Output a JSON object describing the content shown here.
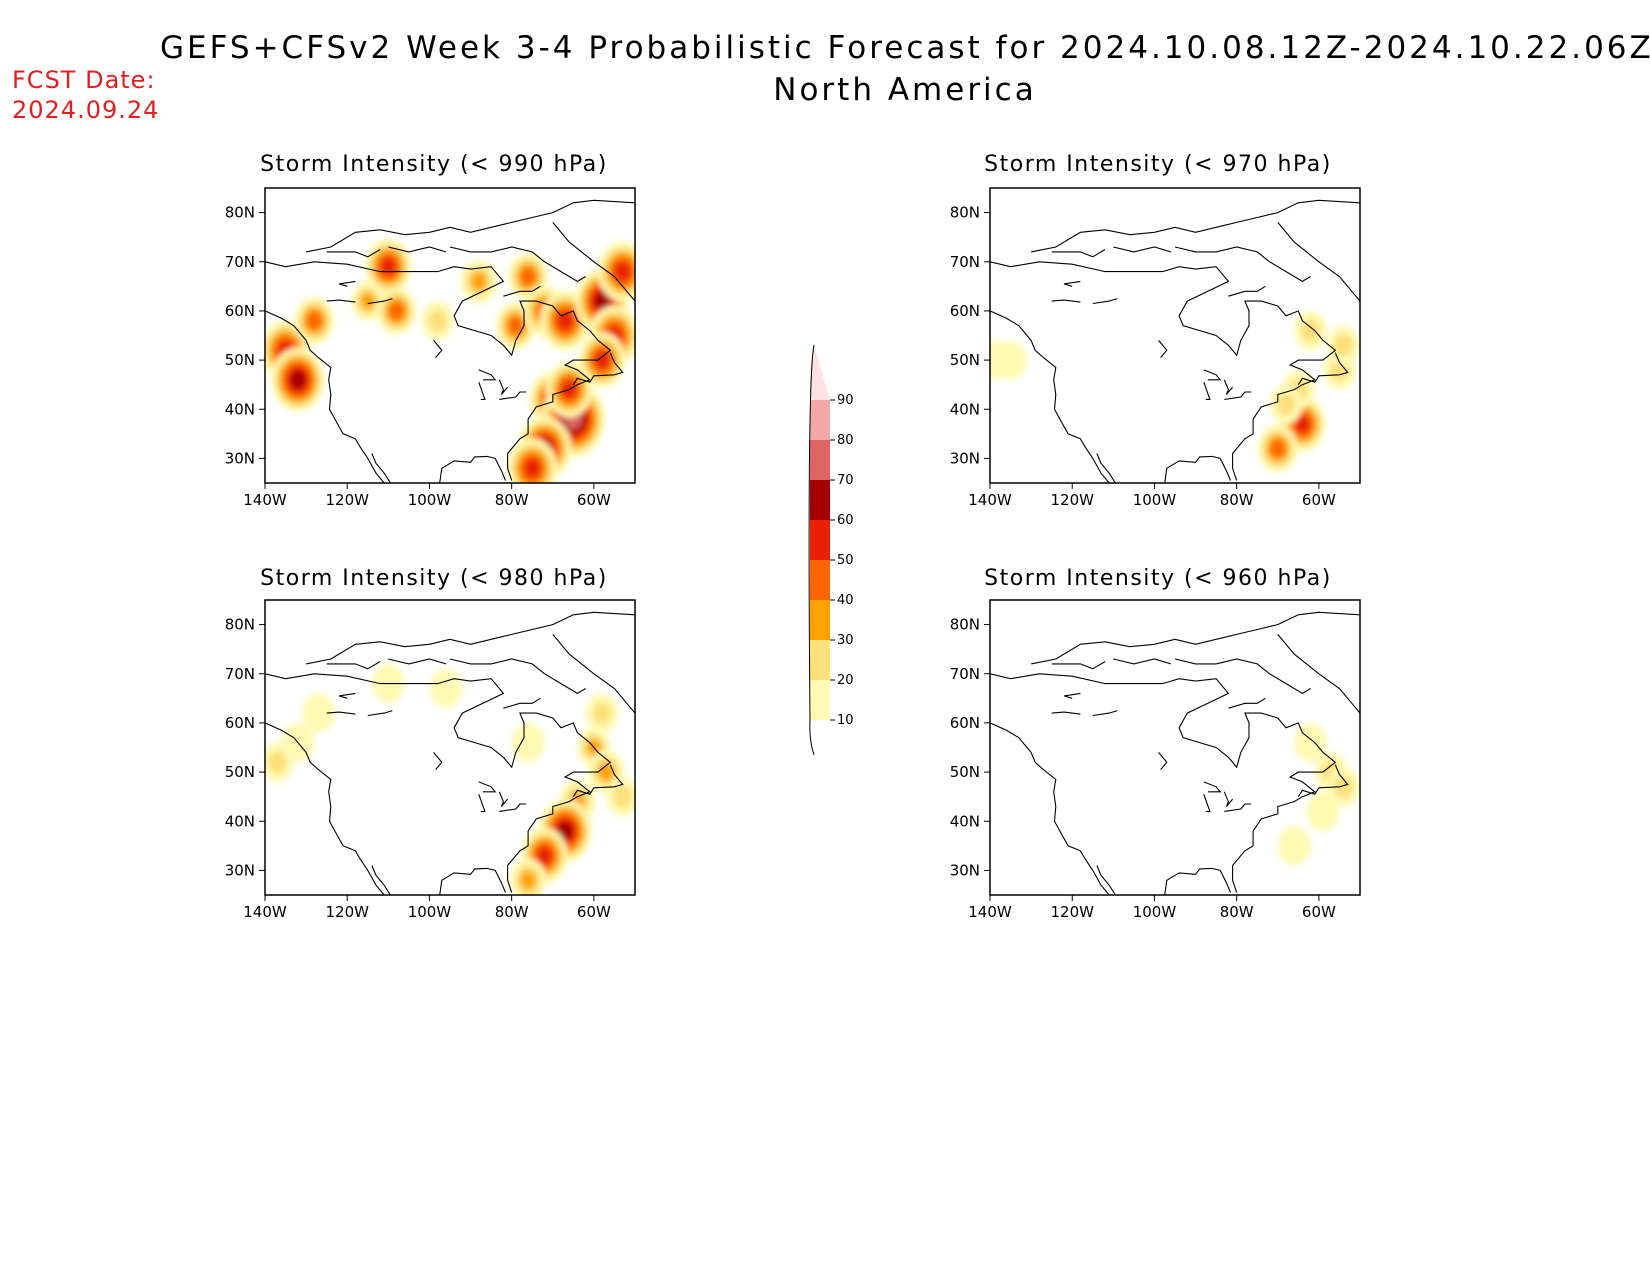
{
  "header": {
    "title": "GEFS+CFSv2 Week 3-4 Probabilistic Forecast for 2024.10.08.12Z-2024.10.22.06Z",
    "region": "North America",
    "fcst_label": "FCST Date:",
    "fcst_date": "2024.09.24"
  },
  "axes": {
    "lat_labels": [
      "80N",
      "70N",
      "60N",
      "50N",
      "40N",
      "30N"
    ],
    "lon_labels": [
      "140W",
      "120W",
      "100W",
      "80W",
      "60W"
    ]
  },
  "panels": [
    {
      "id": "p990",
      "title": "Storm Intensity (< 990 hPa)",
      "hotspots": [
        {
          "lon": -135,
          "lat": 52,
          "p": 55
        },
        {
          "lon": -132,
          "lat": 46,
          "p": 60
        },
        {
          "lon": -128,
          "lat": 58,
          "p": 40
        },
        {
          "lon": -115,
          "lat": 62,
          "p": 30
        },
        {
          "lon": -108,
          "lat": 60,
          "p": 40
        },
        {
          "lon": -110,
          "lat": 69,
          "p": 50
        },
        {
          "lon": -98,
          "lat": 58,
          "p": 20
        },
        {
          "lon": -88,
          "lat": 66,
          "p": 35
        },
        {
          "lon": -76,
          "lat": 67,
          "p": 40
        },
        {
          "lon": -79,
          "lat": 57,
          "p": 40
        },
        {
          "lon": -72,
          "lat": 60,
          "p": 45
        },
        {
          "lon": -67,
          "lat": 58,
          "p": 55
        },
        {
          "lon": -58,
          "lat": 62,
          "p": 60
        },
        {
          "lon": -55,
          "lat": 55,
          "p": 55
        },
        {
          "lon": -58,
          "lat": 50,
          "p": 50
        },
        {
          "lon": -70,
          "lat": 42,
          "p": 50
        },
        {
          "lon": -65,
          "lat": 38,
          "p": 75
        },
        {
          "lon": -72,
          "lat": 32,
          "p": 60
        },
        {
          "lon": -75,
          "lat": 28,
          "p": 55
        },
        {
          "lon": -66,
          "lat": 44,
          "p": 50
        },
        {
          "lon": -53,
          "lat": 68,
          "p": 55
        }
      ]
    },
    {
      "id": "p970",
      "title": "Storm Intensity (< 970 hPa)",
      "hotspots": [
        {
          "lon": -139,
          "lat": 50,
          "p": 15
        },
        {
          "lon": -135,
          "lat": 50,
          "p": 10
        },
        {
          "lon": -62,
          "lat": 56,
          "p": 20
        },
        {
          "lon": -55,
          "lat": 48,
          "p": 25
        },
        {
          "lon": -54,
          "lat": 53,
          "p": 20
        },
        {
          "lon": -64,
          "lat": 37,
          "p": 50
        },
        {
          "lon": -70,
          "lat": 32,
          "p": 40
        },
        {
          "lon": -65,
          "lat": 44,
          "p": 25
        },
        {
          "lon": -68,
          "lat": 41,
          "p": 20
        }
      ]
    },
    {
      "id": "p980",
      "title": "Storm Intensity (< 980 hPa)",
      "hotspots": [
        {
          "lon": -137,
          "lat": 52,
          "p": 20
        },
        {
          "lon": -132,
          "lat": 56,
          "p": 15
        },
        {
          "lon": -127,
          "lat": 62,
          "p": 15
        },
        {
          "lon": -110,
          "lat": 68,
          "p": 15
        },
        {
          "lon": -96,
          "lat": 67,
          "p": 10
        },
        {
          "lon": -76,
          "lat": 56,
          "p": 15
        },
        {
          "lon": -58,
          "lat": 62,
          "p": 25
        },
        {
          "lon": -60,
          "lat": 55,
          "p": 30
        },
        {
          "lon": -57,
          "lat": 50,
          "p": 35
        },
        {
          "lon": -64,
          "lat": 44,
          "p": 35
        },
        {
          "lon": -67,
          "lat": 38,
          "p": 60
        },
        {
          "lon": -72,
          "lat": 33,
          "p": 50
        },
        {
          "lon": -76,
          "lat": 28,
          "p": 35
        },
        {
          "lon": -53,
          "lat": 45,
          "p": 20
        }
      ]
    },
    {
      "id": "p960",
      "title": "Storm Intensity (< 960 hPa)",
      "hotspots": [
        {
          "lon": -62,
          "lat": 56,
          "p": 15
        },
        {
          "lon": -57,
          "lat": 50,
          "p": 20
        },
        {
          "lon": -54,
          "lat": 47,
          "p": 20
        },
        {
          "lon": -66,
          "lat": 35,
          "p": 10
        },
        {
          "lon": -59,
          "lat": 42,
          "p": 10
        }
      ]
    }
  ],
  "colorbar": {
    "levels": [
      "10",
      "20",
      "30",
      "40",
      "50",
      "60",
      "70",
      "80",
      "90"
    ],
    "colors": [
      "#fff9b4",
      "#fce07a",
      "#fca300",
      "#fc6600",
      "#e82000",
      "#a50000",
      "#de6464",
      "#f5a6a6",
      "#fde2e2"
    ]
  }
}
